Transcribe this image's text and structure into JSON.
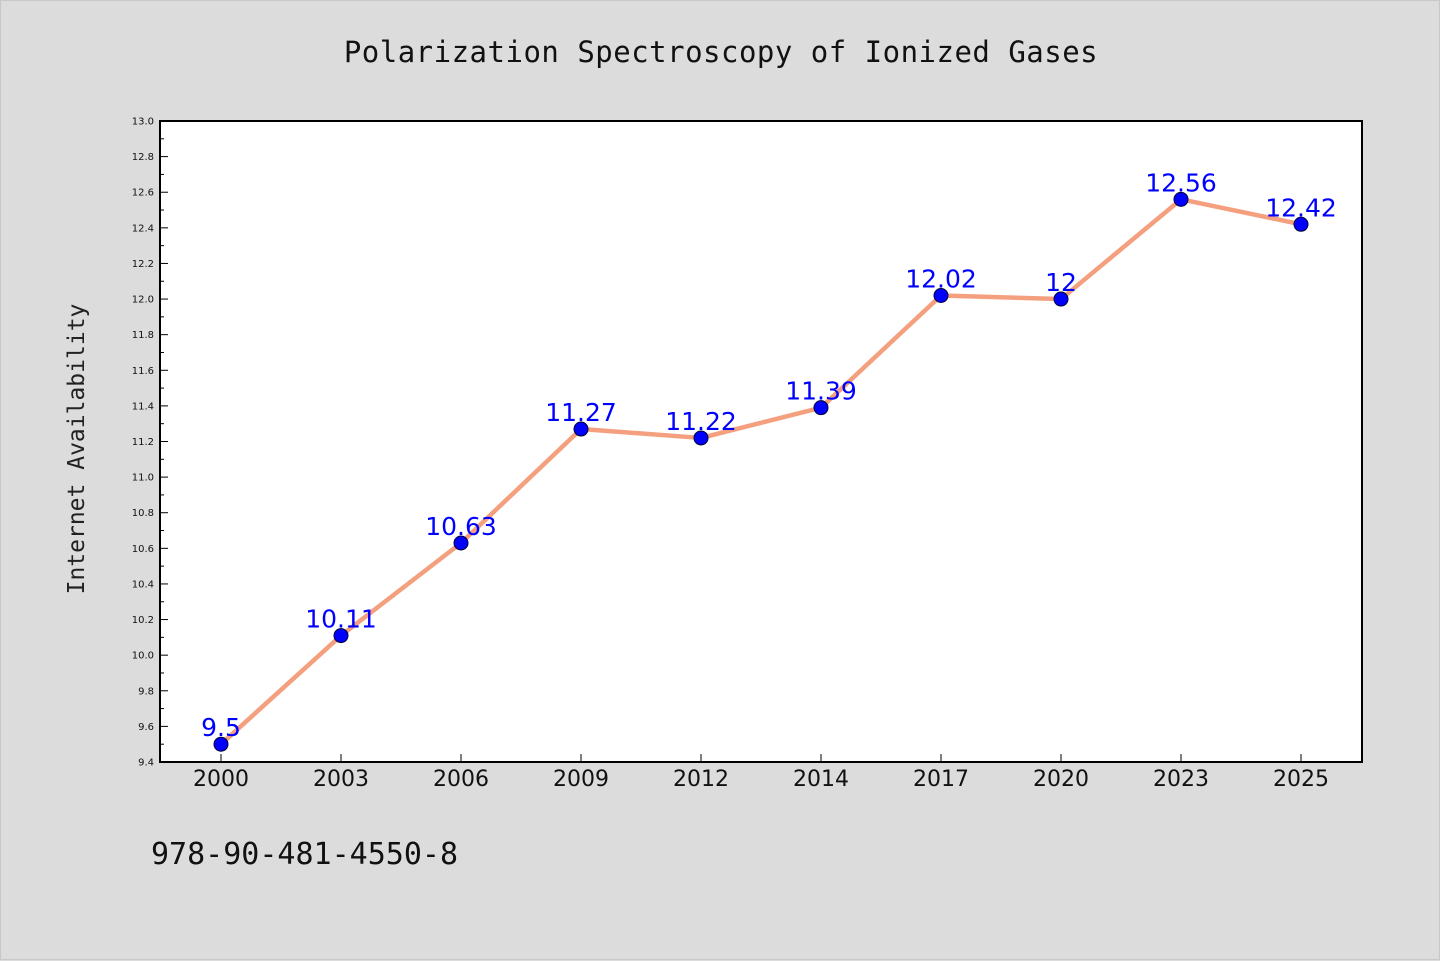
{
  "chart_data": {
    "type": "line",
    "title": "Polarization Spectroscopy of Ionized Gases",
    "xlabel": "",
    "ylabel": "Internet Availability",
    "categories": [
      "2000",
      "2003",
      "2006",
      "2009",
      "2012",
      "2014",
      "2017",
      "2020",
      "2023",
      "2025"
    ],
    "series": [
      {
        "values": [
          9.5,
          10.11,
          10.63,
          11.27,
          11.22,
          11.39,
          12.02,
          12,
          12.56,
          12.42
        ],
        "labels": [
          "9.5",
          "10.11",
          "10.63",
          "11.27",
          "11.22",
          "11.39",
          "12.02",
          "12",
          "12.56",
          "12.42"
        ],
        "line_color": "#f4a07f",
        "marker_color": "#0000ff",
        "label_color": "#0000ff"
      }
    ],
    "ylim": [
      9.4,
      13.0
    ],
    "yticks": [
      "9.4",
      "9.6",
      "9.8",
      "10.0",
      "10.2",
      "10.4",
      "10.6",
      "10.8",
      "11.0",
      "11.2",
      "11.4",
      "11.6",
      "11.8",
      "12.0",
      "12.2",
      "12.4",
      "12.6",
      "12.8",
      "13.0"
    ],
    "grid": false,
    "legend": "none"
  },
  "footer": {
    "isbn": "978-90-481-4550-8"
  },
  "colors": {
    "background": "#dcdcdc",
    "plot_area": "#ffffff"
  }
}
